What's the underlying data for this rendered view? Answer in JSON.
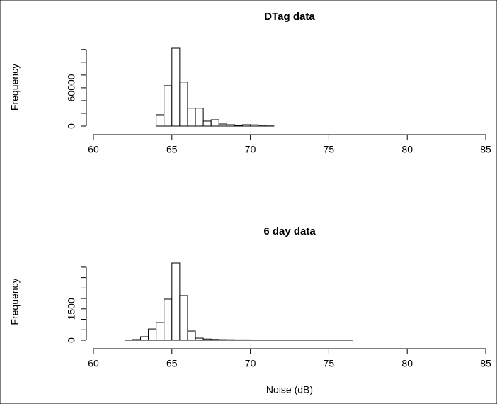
{
  "chart_data": [
    {
      "type": "histogram",
      "title": "DTag data",
      "ylabel": "Frequency",
      "bins": [
        60,
        60.5,
        61,
        61.5,
        62,
        62.5,
        63,
        63.5,
        64,
        64.5,
        65,
        65.5,
        66,
        66.5,
        67,
        67.5,
        68,
        68.5,
        69,
        69.5,
        70,
        70.5,
        71,
        71.5,
        72,
        72.5,
        73,
        73.5,
        74,
        74.5,
        75,
        75.5,
        76,
        76.5,
        77,
        77.5,
        78,
        78.5,
        79,
        79.5,
        80,
        80.5,
        81,
        81.5,
        82,
        82.5,
        83,
        83.5,
        84,
        84.5,
        85
      ],
      "values": [
        0,
        0,
        0,
        0,
        0,
        0,
        0,
        0,
        17800,
        63300,
        122000,
        69000,
        28000,
        28000,
        7800,
        10000,
        3300,
        2200,
        1100,
        2200,
        2000,
        300,
        200,
        0,
        0,
        0,
        0,
        0,
        0,
        0,
        0,
        0,
        0,
        0,
        0,
        0,
        0,
        0,
        0,
        0,
        0,
        0,
        0,
        0,
        0,
        0,
        0,
        0,
        0,
        0
      ],
      "color": "#ffffff",
      "xlim": [
        60,
        85
      ],
      "xticks": [
        60,
        65,
        70,
        75,
        80,
        85
      ],
      "ylim": [
        0,
        122000
      ],
      "yticks": [
        0,
        60000
      ],
      "yminor_ticks": [
        20000,
        40000,
        80000,
        100000,
        120000
      ]
    },
    {
      "type": "histogram",
      "title": "6 day data",
      "ylabel": "Frequency",
      "xlabel": "Noise (dB)",
      "bins": [
        60,
        60.5,
        61,
        61.5,
        62,
        62.5,
        63,
        63.5,
        64,
        64.5,
        65,
        65.5,
        66,
        66.5,
        67,
        67.5,
        68,
        68.5,
        69,
        69.5,
        70,
        70.5,
        71,
        71.5,
        72,
        72.5,
        73,
        73.5,
        74,
        74.5,
        75,
        75.5,
        76,
        76.5,
        77,
        77.5,
        78,
        78.5,
        79,
        79.5,
        80,
        80.5,
        81,
        81.5,
        82,
        82.5,
        83,
        83.5,
        84,
        84.5,
        85
      ],
      "values": [
        0,
        0,
        0,
        0,
        10,
        34,
        170,
        540,
        850,
        1970,
        3700,
        2140,
        440,
        100,
        60,
        40,
        30,
        25,
        20,
        20,
        15,
        10,
        10,
        10,
        10,
        5,
        5,
        5,
        5,
        5,
        5,
        5,
        5,
        0,
        0,
        0,
        0,
        0,
        0,
        0,
        0,
        0,
        0,
        0,
        0,
        0,
        0,
        0,
        0,
        0
      ],
      "color": "#ffffff",
      "xlim": [
        60,
        85
      ],
      "xticks": [
        60,
        65,
        70,
        75,
        80,
        85
      ],
      "ylim": [
        0,
        3700
      ],
      "yticks": [
        0,
        1500
      ],
      "yminor_ticks": [
        500,
        1000,
        2000,
        2500,
        3000,
        3500
      ]
    }
  ]
}
